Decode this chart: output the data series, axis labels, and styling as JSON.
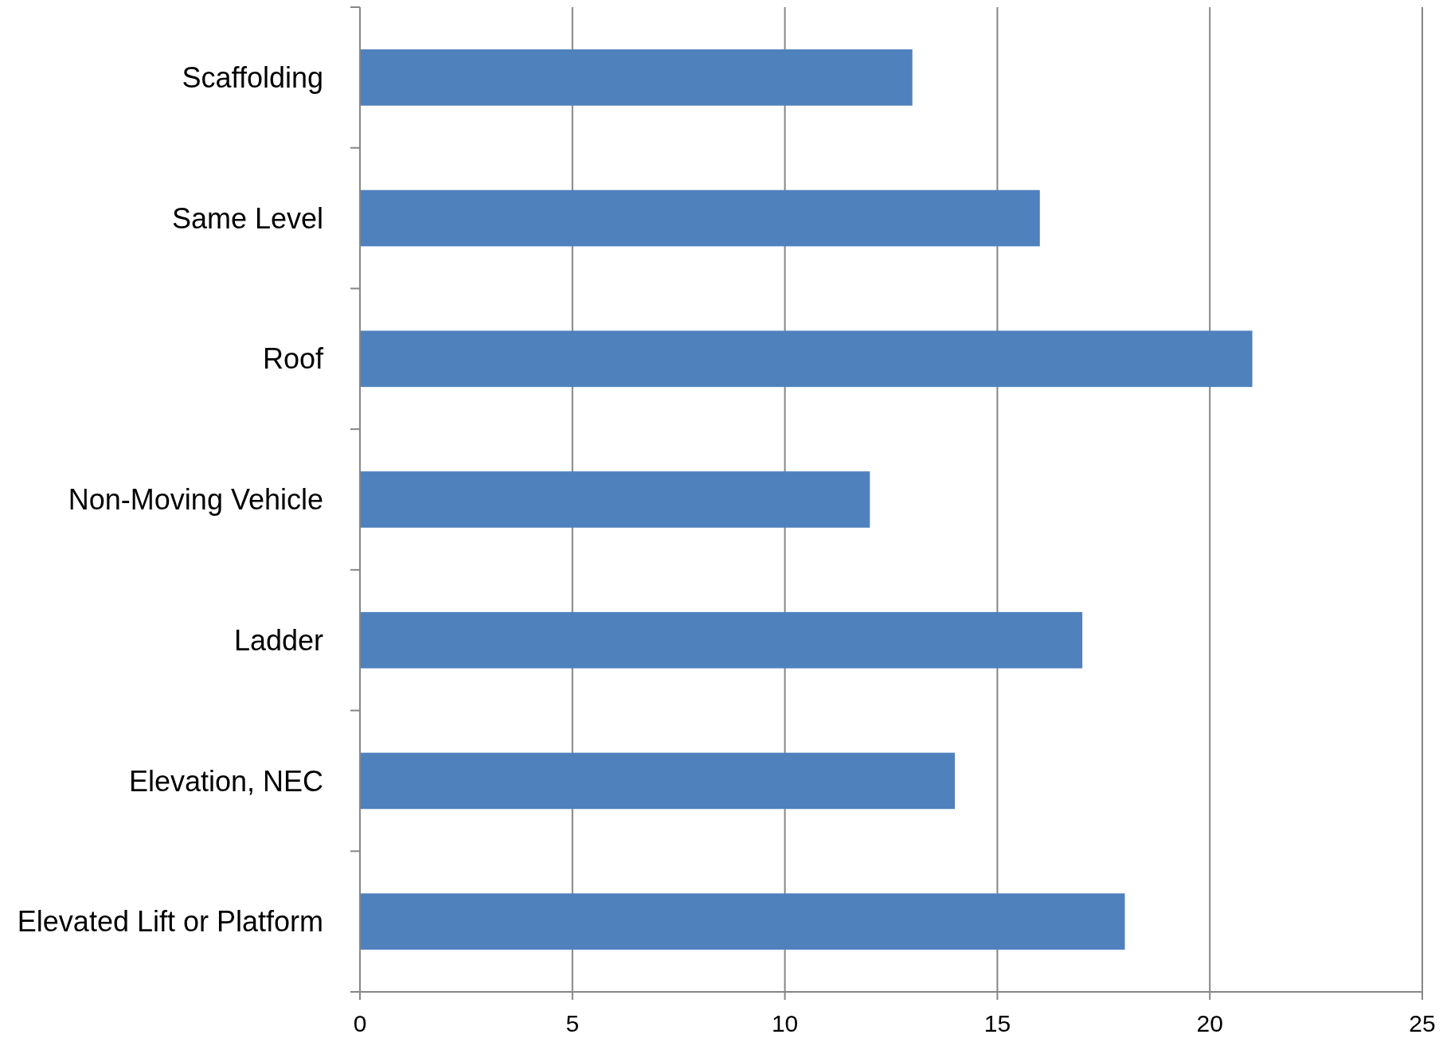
{
  "chart_data": {
    "type": "bar",
    "orientation": "horizontal",
    "categories": [
      "Scaffolding",
      "Same Level",
      "Roof",
      "Non-Moving Vehicle",
      "Ladder",
      "Elevation, NEC",
      "Elevated Lift or Platform"
    ],
    "values": [
      13,
      16,
      21,
      12,
      17,
      14,
      18
    ],
    "color": "#4f81bd",
    "xlim": [
      0,
      25
    ],
    "xticks": [
      0,
      5,
      10,
      15,
      20,
      25
    ],
    "grid": "x"
  }
}
